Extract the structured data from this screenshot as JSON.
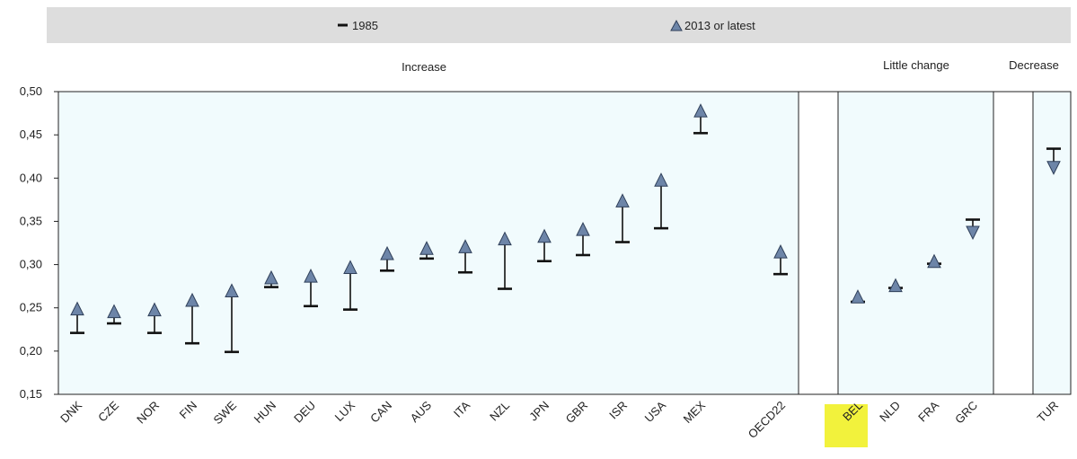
{
  "chart_data": {
    "type": "scatter",
    "ylim": [
      0.15,
      0.5
    ],
    "y_ticks": [
      "0,15",
      "0,20",
      "0,25",
      "0,30",
      "0,35",
      "0,40",
      "0,45",
      "0,50"
    ],
    "legend": {
      "items": [
        {
          "label": "1985",
          "marker": "dash"
        },
        {
          "label": "2013 or latest",
          "marker": "triangle"
        }
      ],
      "placement": "top"
    },
    "groups": [
      {
        "label": "Increase",
        "categories": [
          "DNK",
          "CZE",
          "NOR",
          "FIN",
          "SWE",
          "HUN",
          "DEU",
          "LUX",
          "CAN",
          "AUS",
          "ITA",
          "NZL",
          "JPN",
          "GBR",
          "ISR",
          "USA",
          "MEX",
          "OECD22"
        ]
      },
      {
        "label": "Little change",
        "categories": [
          "BEL",
          "NLD",
          "FRA",
          "GRC"
        ]
      },
      {
        "label": "Decrease",
        "categories": [
          "TUR"
        ]
      }
    ],
    "highlighted_category": "BEL",
    "highlight_color": "#f2f23c",
    "series": [
      {
        "name": "1985",
        "values": [
          0.221,
          0.232,
          0.221,
          0.209,
          0.199,
          0.274,
          0.252,
          0.248,
          0.293,
          0.307,
          0.291,
          0.272,
          0.304,
          0.311,
          0.326,
          0.342,
          0.452,
          0.289,
          0.257,
          0.273,
          0.301,
          0.352,
          0.434
        ]
      },
      {
        "name": "2013 or latest",
        "values": [
          0.249,
          0.246,
          0.248,
          0.259,
          0.27,
          0.285,
          0.287,
          0.297,
          0.313,
          0.319,
          0.321,
          0.33,
          0.333,
          0.341,
          0.374,
          0.398,
          0.478,
          0.315,
          0.263,
          0.276,
          0.304,
          0.337,
          0.412
        ]
      }
    ],
    "categories": [
      "DNK",
      "CZE",
      "NOR",
      "FIN",
      "SWE",
      "HUN",
      "DEU",
      "LUX",
      "CAN",
      "AUS",
      "ITA",
      "NZL",
      "JPN",
      "GBR",
      "ISR",
      "USA",
      "MEX",
      "OECD22",
      "BEL",
      "NLD",
      "FRA",
      "GRC",
      "TUR"
    ],
    "colors": {
      "panel_fill": "#f1fbfd",
      "marker_fill": "#6d85a8",
      "marker_stroke": "#2f3f59",
      "legend_bg": "#dddddd"
    }
  }
}
